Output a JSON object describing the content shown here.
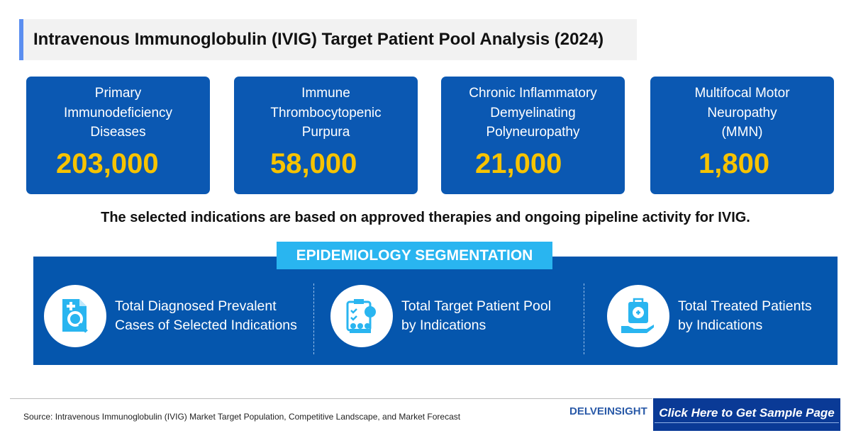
{
  "title": "Intravenous Immunoglobulin (IVIG) Target Patient Pool Analysis (2024)",
  "cards": [
    {
      "label": "Primary\nImmunodeficiency\nDiseases",
      "value": "203,000"
    },
    {
      "label": "Immune\nThrombocytopenic\nPurpura",
      "value": "58,000"
    },
    {
      "label": "Chronic Inflammatory\nDemyelinating\nPolyneuropathy",
      "value": "21,000"
    },
    {
      "label": "Multifocal Motor\nNeuropathy\n(MMN)",
      "value": "1,800"
    }
  ],
  "note": "The selected indications are based on approved therapies and ongoing pipeline activity for IVIG.",
  "segmentation": {
    "header": "EPIDEMIOLOGY SEGMENTATION",
    "items": [
      {
        "icon": "document-search-icon",
        "label": "Total Diagnosed Prevalent\nCases of Selected Indications"
      },
      {
        "icon": "clipboard-patients-icon",
        "label": "Total Target Patient Pool\nby Indications"
      },
      {
        "icon": "medical-kit-hand-icon",
        "label": "Total Treated Patients\nby Indications"
      }
    ]
  },
  "footer": {
    "source": "Source: Intravenous Immunoglobulin (IVIG)  Market Target Population, Competitive Landscape, and Market Forecast",
    "logo": "DELVEINSIGHT",
    "cta": "Click Here to Get Sample Page"
  },
  "colors": {
    "card": "#0b58b2",
    "number": "#f7c300",
    "pill": "#29b5f0",
    "icon": "#29b5f0",
    "button": "#0a3a96"
  }
}
